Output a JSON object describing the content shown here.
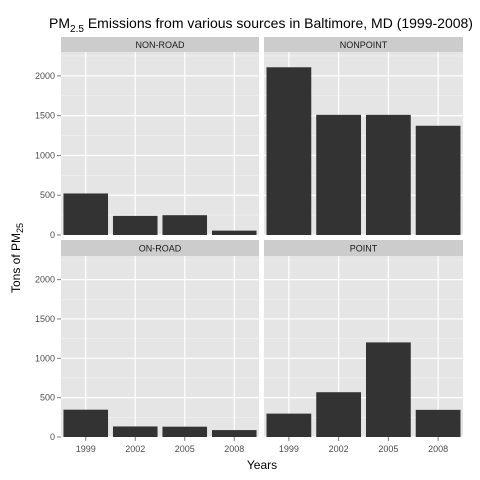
{
  "chart_data": {
    "type": "bar",
    "title_main": "PM",
    "title_sub": "2.5",
    "title_rest": " Emissions from various sources in Baltimore, MD (1999-2008)",
    "xlabel": "Years",
    "ylabel_main": "Tons of PM",
    "ylabel_sub": "25",
    "categories": [
      "1999",
      "2002",
      "2005",
      "2008"
    ],
    "ylim": [
      0,
      2300
    ],
    "yticks": [
      "0",
      "500",
      "1000",
      "1500",
      "2000"
    ],
    "grid": true,
    "colors": {
      "panel_bg": "#e5e5e5",
      "strip_bg": "#cccccc",
      "bar": "#333333",
      "grid": "#ffffff"
    },
    "panels": [
      {
        "name": "NON-ROAD",
        "values": [
          522,
          240,
          249,
          55
        ]
      },
      {
        "name": "NONPOINT",
        "values": [
          2108,
          1510,
          1510,
          1373
        ]
      },
      {
        "name": "ON-ROAD",
        "values": [
          347,
          134,
          131,
          88
        ]
      },
      {
        "name": "POINT",
        "values": [
          297,
          569,
          1202,
          345
        ]
      }
    ]
  }
}
